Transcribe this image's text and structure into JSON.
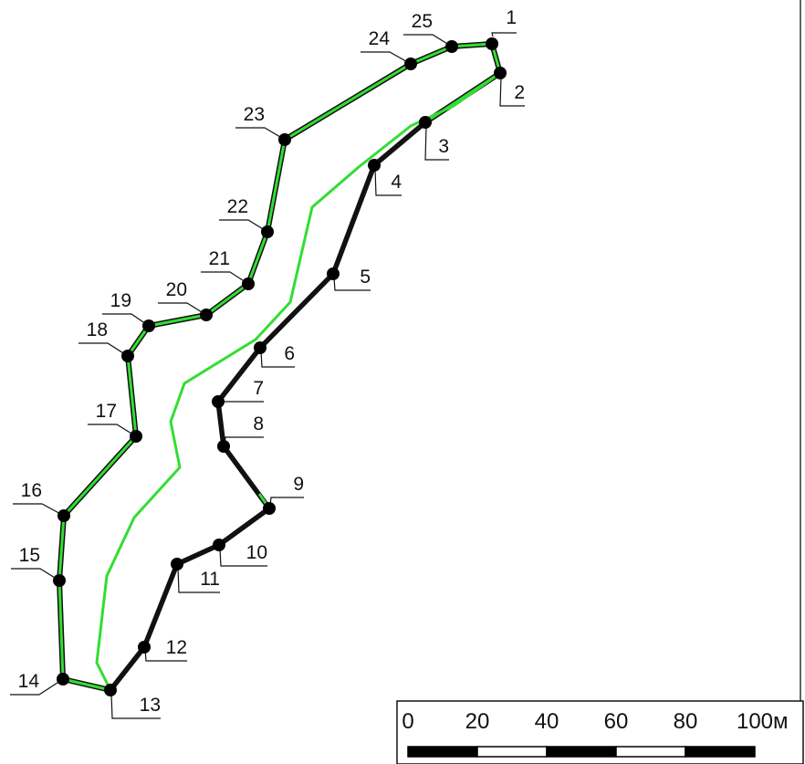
{
  "map": {
    "colors": {
      "boundary": "#111111",
      "highlight": "#33dd33",
      "point": "#000000",
      "leader": "#111111"
    },
    "points": [
      {
        "id": "1",
        "label": "1"
      },
      {
        "id": "2",
        "label": "2"
      },
      {
        "id": "3",
        "label": "3"
      },
      {
        "id": "4",
        "label": "4"
      },
      {
        "id": "5",
        "label": "5"
      },
      {
        "id": "6",
        "label": "6"
      },
      {
        "id": "7",
        "label": "7"
      },
      {
        "id": "8",
        "label": "8"
      },
      {
        "id": "9",
        "label": "9"
      },
      {
        "id": "10",
        "label": "10"
      },
      {
        "id": "11",
        "label": "11"
      },
      {
        "id": "12",
        "label": "12"
      },
      {
        "id": "13",
        "label": "13"
      },
      {
        "id": "14",
        "label": "14"
      },
      {
        "id": "15",
        "label": "15"
      },
      {
        "id": "16",
        "label": "16"
      },
      {
        "id": "17",
        "label": "17"
      },
      {
        "id": "18",
        "label": "18"
      },
      {
        "id": "19",
        "label": "19"
      },
      {
        "id": "20",
        "label": "20"
      },
      {
        "id": "21",
        "label": "21"
      },
      {
        "id": "22",
        "label": "22"
      },
      {
        "id": "23",
        "label": "23"
      },
      {
        "id": "24",
        "label": "24"
      },
      {
        "id": "25",
        "label": "25"
      }
    ],
    "scale_bar": {
      "ticks": [
        "0",
        "20",
        "40",
        "60",
        "80"
      ],
      "last_tick": "100",
      "unit": "м"
    }
  }
}
